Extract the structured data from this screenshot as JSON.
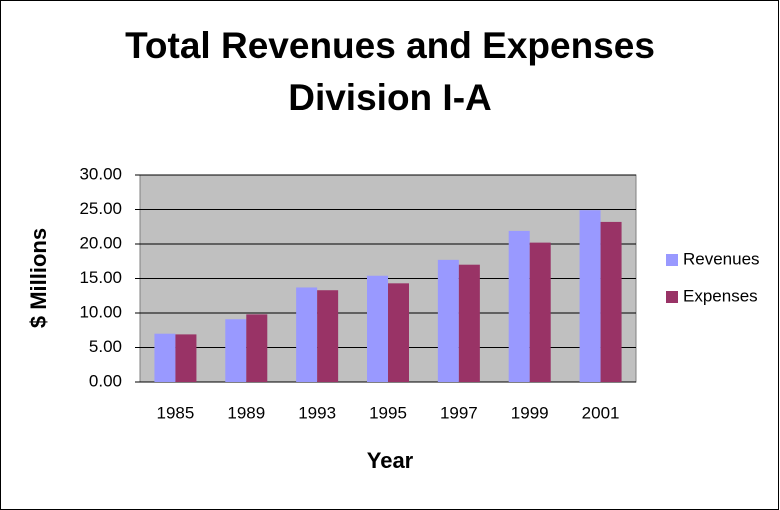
{
  "chart_data": {
    "type": "bar",
    "title": [
      "Total Revenues and Expenses",
      "Division I-A"
    ],
    "x_label": "Year",
    "y_label": "$ Millions",
    "categories": [
      "1985",
      "1989",
      "1993",
      "1995",
      "1997",
      "1999",
      "2001"
    ],
    "series": [
      {
        "name": "Revenues",
        "color": "#9999ff",
        "values": [
          7.0,
          9.1,
          13.7,
          15.4,
          17.7,
          21.9,
          24.9
        ]
      },
      {
        "name": "Expenses",
        "color": "#993366",
        "values": [
          6.9,
          9.8,
          13.3,
          14.3,
          17.0,
          20.2,
          23.2
        ]
      }
    ],
    "ylim": [
      0,
      30
    ],
    "yticks": [
      {
        "value": 0,
        "label": "0.00"
      },
      {
        "value": 5,
        "label": "5.00"
      },
      {
        "value": 10,
        "label": "10.00"
      },
      {
        "value": 15,
        "label": "15.00"
      },
      {
        "value": 20,
        "label": "20.00"
      },
      {
        "value": 25,
        "label": "25.00"
      },
      {
        "value": 30,
        "label": "30.00"
      }
    ],
    "grid": true,
    "legend": "right",
    "plot_background": "#c0c0c0"
  }
}
